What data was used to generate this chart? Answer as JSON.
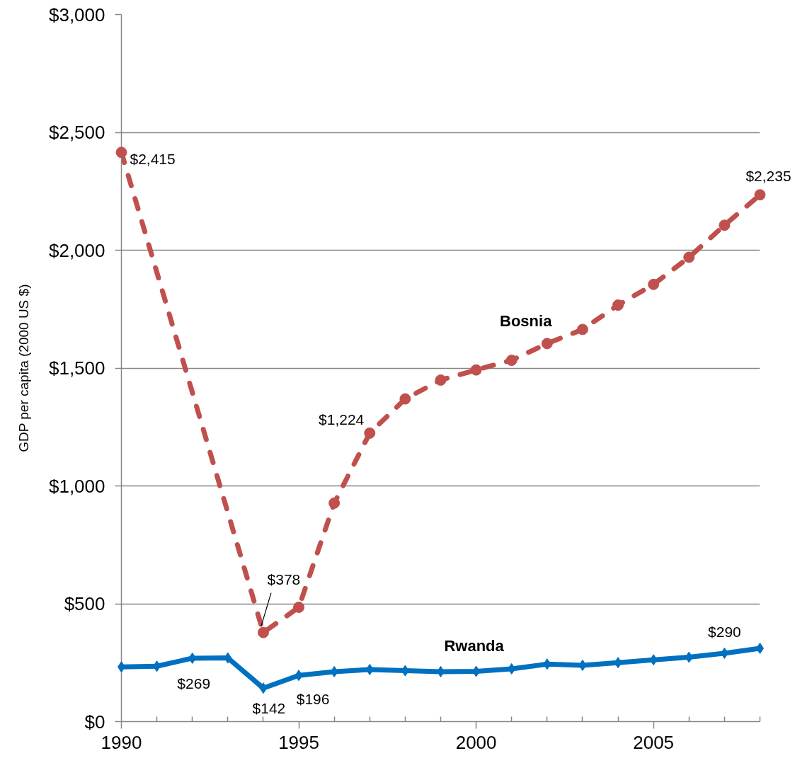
{
  "chart_data": {
    "type": "line",
    "ylabel": "GDP per capita (2000 US $)",
    "x": [
      1990,
      1991,
      1992,
      1993,
      1994,
      1995,
      1996,
      1997,
      1998,
      1999,
      2000,
      2001,
      2002,
      2003,
      2004,
      2005,
      2006,
      2007,
      2008
    ],
    "xlim": [
      1990,
      2008
    ],
    "xticks": [
      1990,
      {
        "value": 1991,
        "label": null
      },
      {
        "value": 1992,
        "label": null
      },
      {
        "value": 1993,
        "label": null
      },
      {
        "value": 1994,
        "label": null
      },
      1995,
      {
        "value": 1996,
        "label": null
      },
      {
        "value": 1997,
        "label": null
      },
      {
        "value": 1998,
        "label": null
      },
      {
        "value": 1999,
        "label": null
      },
      2000,
      {
        "value": 2001,
        "label": null
      },
      {
        "value": 2002,
        "label": null
      },
      {
        "value": 2003,
        "label": null
      },
      {
        "value": 2004,
        "label": null
      },
      2005,
      {
        "value": 2006,
        "label": null
      },
      {
        "value": 2007,
        "label": null
      },
      {
        "value": 2008,
        "label": null
      }
    ],
    "ylim": [
      0,
      3000
    ],
    "yticks": [
      {
        "value": 0,
        "label": "$0"
      },
      {
        "value": 500,
        "label": "$500"
      },
      {
        "value": 1000,
        "label": "$1,000"
      },
      {
        "value": 1500,
        "label": "$1,500"
      },
      {
        "value": 2000,
        "label": "$2,000"
      },
      {
        "value": 2500,
        "label": "$2,500"
      },
      {
        "value": 3000,
        "label": "$3,000"
      }
    ],
    "grid": "y",
    "series": [
      {
        "name": "Bosnia",
        "color": "#c0504d",
        "marker": "circle",
        "line_style": "dashed",
        "x": [
          1990,
          1994,
          1995,
          1996,
          1997,
          1998,
          1999,
          2000,
          2001,
          2002,
          2003,
          2004,
          2005,
          2006,
          2007,
          2008
        ],
        "values": [
          2415,
          378,
          485,
          927,
          1224,
          1369,
          1449,
          1492,
          1533,
          1604,
          1664,
          1767,
          1855,
          1970,
          2106,
          2235
        ],
        "value_labels": [
          "$2,415",
          "$378",
          null,
          null,
          "$1,224",
          null,
          null,
          null,
          null,
          null,
          null,
          null,
          null,
          null,
          null,
          "$2,235"
        ]
      },
      {
        "name": "Rwanda",
        "color": "#0070c0",
        "marker": "diamond",
        "line_style": "solid",
        "values": [
          232,
          235,
          269,
          270,
          142,
          196,
          212,
          221,
          216,
          212,
          213,
          224,
          244,
          239,
          250,
          262,
          273,
          290,
          311
        ],
        "value_labels": [
          null,
          null,
          "$269",
          null,
          "$142",
          "$196",
          null,
          null,
          null,
          null,
          null,
          null,
          null,
          null,
          null,
          null,
          null,
          "$290",
          null
        ]
      }
    ]
  }
}
